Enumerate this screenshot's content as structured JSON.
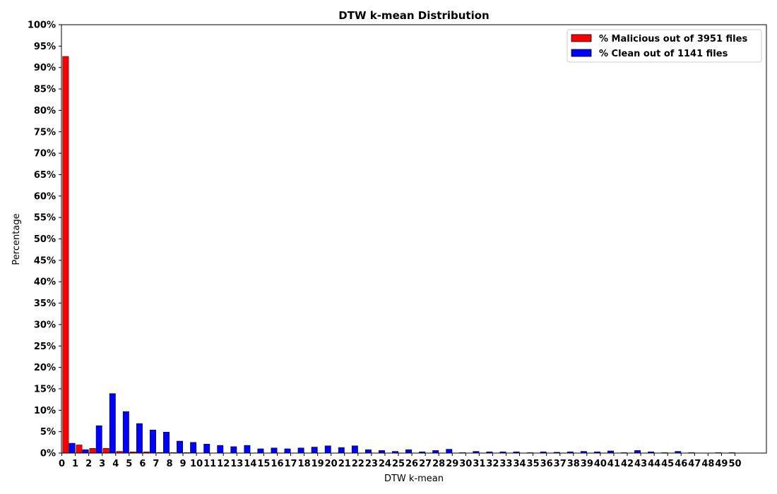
{
  "chart_data": {
    "type": "bar",
    "title": "DTW k-mean Distribution",
    "xlabel": "DTW k-mean",
    "ylabel": "Percentage",
    "ylim": [
      0,
      100
    ],
    "yticks": [
      "0%",
      "5%",
      "10%",
      "15%",
      "20%",
      "25%",
      "30%",
      "35%",
      "40%",
      "45%",
      "50%",
      "55%",
      "60%",
      "65%",
      "70%",
      "75%",
      "80%",
      "85%",
      "90%",
      "95%",
      "100%"
    ],
    "categories": [
      "0",
      "1",
      "2",
      "3",
      "4",
      "5",
      "6",
      "7",
      "8",
      "9",
      "10",
      "11",
      "12",
      "13",
      "14",
      "15",
      "16",
      "17",
      "18",
      "19",
      "20",
      "21",
      "22",
      "23",
      "24",
      "25",
      "26",
      "27",
      "28",
      "29",
      "30",
      "31",
      "32",
      "33",
      "34",
      "35",
      "36",
      "37",
      "38",
      "39",
      "40",
      "41",
      "42",
      "43",
      "44",
      "45",
      "46",
      "47",
      "48",
      "49",
      "50"
    ],
    "legend_position": "top-right",
    "grid": false,
    "series": [
      {
        "name": "% Malicious out of 3951 files",
        "color": "#ff0000",
        "values": [
          92.6,
          1.9,
          1.1,
          1.1,
          0.4,
          0.3,
          0.3,
          0.15,
          0.1,
          0.1,
          0.05,
          0.05,
          0.05,
          0.05,
          0.05,
          0.05,
          0.05,
          0.05,
          0.05,
          0.05,
          0.05,
          0.05,
          0.05,
          0.05,
          0.05,
          0.05,
          0.05,
          0.05,
          0.05,
          0.05,
          0.05,
          0.05,
          0.05,
          0.05,
          0.05,
          0.05,
          0.05,
          0.05,
          0.05,
          0.05,
          0.05,
          0.05,
          0.05,
          0.05,
          0.05,
          0.05,
          0.05,
          0.05,
          0.05,
          0.05,
          0.05
        ]
      },
      {
        "name": "% Clean out of 1141 files",
        "color": "#0000ff",
        "values": [
          2.3,
          0.8,
          6.4,
          13.9,
          9.7,
          6.9,
          5.4,
          4.9,
          2.8,
          2.5,
          2.1,
          1.8,
          1.5,
          1.8,
          1.0,
          1.2,
          1.0,
          1.2,
          1.4,
          1.7,
          1.3,
          1.7,
          0.8,
          0.6,
          0.4,
          0.8,
          0.3,
          0.6,
          0.9,
          0.1,
          0.4,
          0.3,
          0.3,
          0.3,
          0.1,
          0.3,
          0.2,
          0.3,
          0.4,
          0.3,
          0.5,
          0.1,
          0.6,
          0.3,
          0.1,
          0.4,
          0.1,
          0.05,
          0.1,
          0.1,
          0.0
        ]
      }
    ]
  }
}
